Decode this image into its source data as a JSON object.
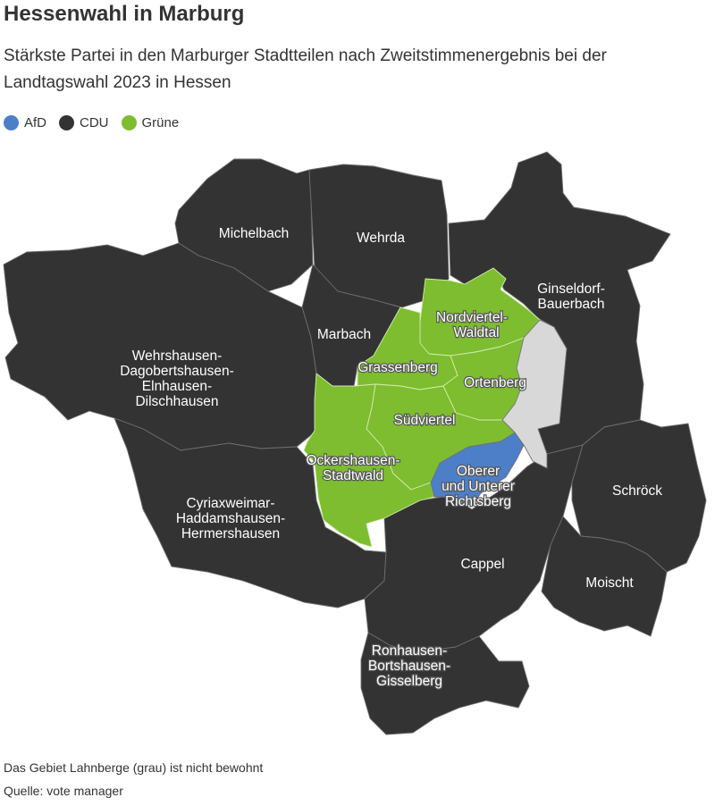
{
  "title": "Hessenwahl in Marburg",
  "subtitle": "Stärkste Partei in den Marburger Stadtteilen nach Zweitstimmenergebnis bei der Landtagswahl 2023 in Hessen",
  "colors": {
    "afd": "#4c7fc8",
    "cdu": "#333333",
    "gruene": "#7dbd2f",
    "uninhabited": "#d8d8d8"
  },
  "legend": [
    {
      "label": "AfD",
      "color": "#4c7fc8"
    },
    {
      "label": "CDU",
      "color": "#333333"
    },
    {
      "label": "Grüne",
      "color": "#7dbd2f"
    }
  ],
  "districts": {
    "michelbach": {
      "label": "Michelbach",
      "party": "CDU"
    },
    "wehrda": {
      "label": "Wehrda",
      "party": "CDU"
    },
    "ginseldorf": {
      "label_1": "Ginseldorf-",
      "label_2": "Bauerbach",
      "party": "CDU"
    },
    "marbach": {
      "label": "Marbach",
      "party": "CDU"
    },
    "nordviertel": {
      "label_1": "Nordviertel-",
      "label_2": "Waldtal",
      "party": "Grüne"
    },
    "grassenberg": {
      "label": "Grassenberg",
      "party": "Grüne"
    },
    "ortenberg": {
      "label": "Ortenberg",
      "party": "Grüne"
    },
    "suedviertel": {
      "label": "Südviertel",
      "party": "Grüne"
    },
    "wehrshausen": {
      "label_1": "Wehrshausen-",
      "label_2": "Dagobertshausen-",
      "label_3": "Elnhausen-",
      "label_4": "Dilschhausen",
      "party": "CDU"
    },
    "ockershausen": {
      "label_1": "Ockershausen-",
      "label_2": "Stadtwald",
      "party": "Grüne"
    },
    "richtsberg": {
      "label_1": "Oberer",
      "label_2": "und Unterer",
      "label_3": "Richtsberg",
      "party": "AfD"
    },
    "schroeck": {
      "label": "Schröck",
      "party": "CDU"
    },
    "cyriaxweimar": {
      "label_1": "Cyriaxweimar-",
      "label_2": "Haddamshausen-",
      "label_3": "Hermershausen",
      "party": "CDU"
    },
    "cappel": {
      "label": "Cappel",
      "party": "CDU"
    },
    "moischt": {
      "label": "Moischt",
      "party": "CDU"
    },
    "ronhausen": {
      "label_1": "Ronhausen-",
      "label_2": "Bortshausen-",
      "label_3": "Gisselberg",
      "party": "CDU"
    },
    "lahnberge": {
      "party": "uninhabited"
    }
  },
  "note": "Das Gebiet Lahnberge (grau) ist nicht bewohnt",
  "source": "Quelle: vote manager"
}
